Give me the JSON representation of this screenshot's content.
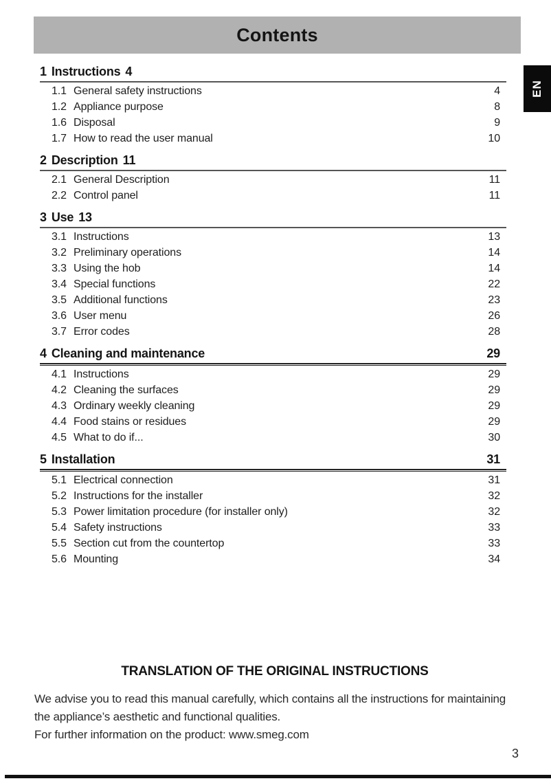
{
  "header": {
    "title": "Contents"
  },
  "language_tab": {
    "label": "EN"
  },
  "toc": {
    "sections": [
      {
        "number": "1",
        "title": "Instructions",
        "page": "4",
        "page_placement": "inline",
        "entries": [
          {
            "number": "1.1",
            "title": "General safety instructions",
            "page": "4"
          },
          {
            "number": "1.2",
            "title": "Appliance purpose",
            "page": "8"
          },
          {
            "number": "1.6",
            "title": "Disposal",
            "page": "9"
          },
          {
            "number": "1.7",
            "title": "How to read the user manual",
            "page": "10"
          }
        ]
      },
      {
        "number": "2",
        "title": "Description",
        "page": "11",
        "page_placement": "inline",
        "entries": [
          {
            "number": "2.1",
            "title": "General Description",
            "page": "11"
          },
          {
            "number": "2.2",
            "title": "Control panel",
            "page": "11"
          }
        ]
      },
      {
        "number": "3",
        "title": "Use",
        "page": "13",
        "page_placement": "inline",
        "entries": [
          {
            "number": "3.1",
            "title": "Instructions",
            "page": "13"
          },
          {
            "number": "3.2",
            "title": "Preliminary operations",
            "page": "14"
          },
          {
            "number": "3.3",
            "title": "Using the hob",
            "page": "14"
          },
          {
            "number": "3.4",
            "title": "Special functions",
            "page": "22"
          },
          {
            "number": "3.5",
            "title": "Additional functions",
            "page": "23"
          },
          {
            "number": "3.6",
            "title": "User menu",
            "page": "26"
          },
          {
            "number": "3.7",
            "title": "Error codes",
            "page": "28"
          }
        ]
      },
      {
        "number": "4",
        "title": "Cleaning and maintenance",
        "page": "29",
        "page_placement": "right",
        "entries": [
          {
            "number": "4.1",
            "title": "Instructions",
            "page": "29"
          },
          {
            "number": "4.2",
            "title": "Cleaning the surfaces",
            "page": "29"
          },
          {
            "number": "4.3",
            "title": "Ordinary weekly cleaning",
            "page": "29"
          },
          {
            "number": "4.4",
            "title": "Food stains or residues",
            "page": "29"
          },
          {
            "number": "4.5",
            "title": "What to do if...",
            "page": "30"
          }
        ]
      },
      {
        "number": "5",
        "title": "Installation",
        "page": "31",
        "page_placement": "right",
        "entries": [
          {
            "number": "5.1",
            "title": "Electrical connection",
            "page": "31"
          },
          {
            "number": "5.2",
            "title": "Instructions for the installer",
            "page": "32"
          },
          {
            "number": "5.3",
            "title": "Power limitation procedure (for installer only)",
            "page": "32"
          },
          {
            "number": "5.4",
            "title": "Safety instructions",
            "page": "33"
          },
          {
            "number": "5.5",
            "title": "Section cut from the countertop",
            "page": "33"
          },
          {
            "number": "5.6",
            "title": "Mounting",
            "page": "34"
          }
        ]
      }
    ]
  },
  "footer": {
    "heading": "TRANSLATION OF THE ORIGINAL INSTRUCTIONS",
    "paragraph": "We advise you to read this manual carefully, which contains all the instructions for maintaining the appliance’s aesthetic and functional qualities.",
    "info_line": "For further information on the product: www.smeg.com",
    "page_number": "3"
  },
  "colors": {
    "header_bar": "#b1b1b1",
    "tab_background": "#0b0b0b",
    "tab_text": "#ffffff",
    "footer_bar": "#111111"
  }
}
